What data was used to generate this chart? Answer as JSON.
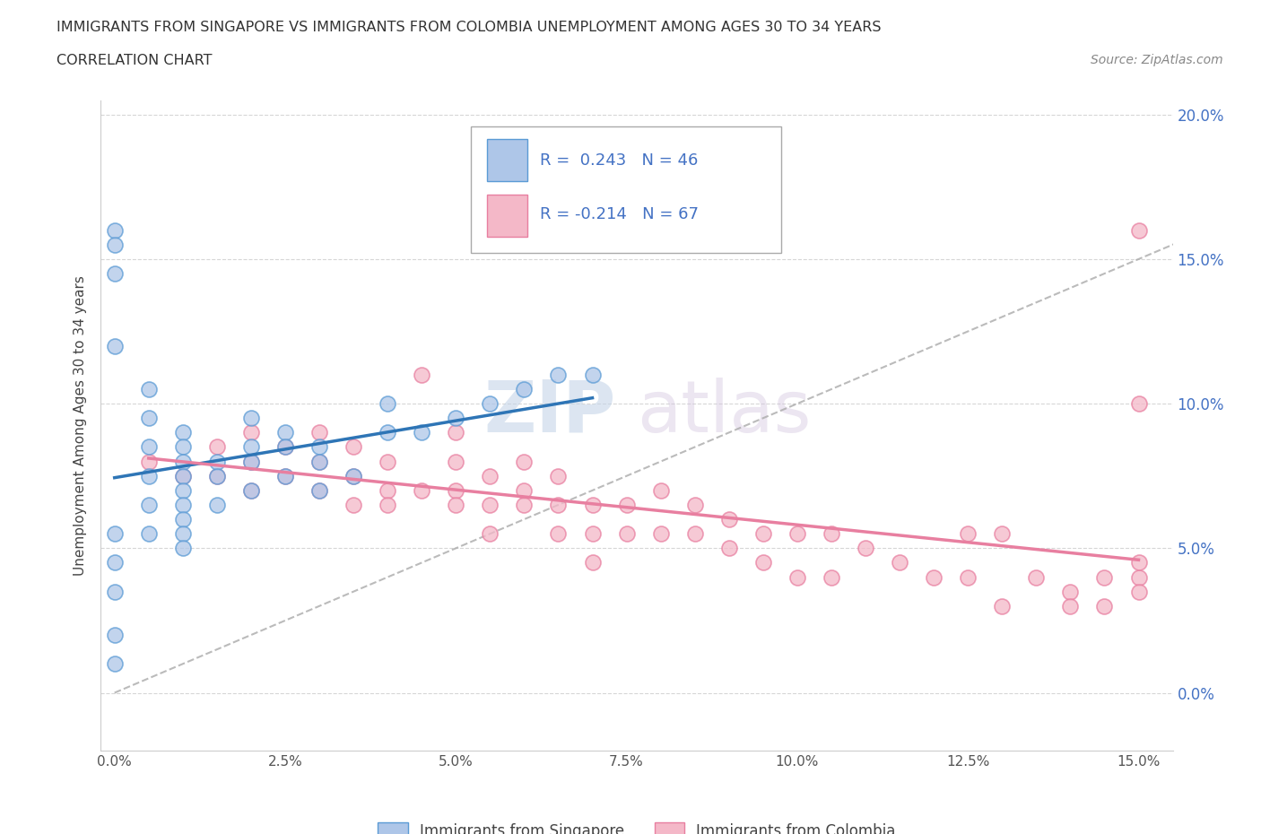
{
  "title_line1": "IMMIGRANTS FROM SINGAPORE VS IMMIGRANTS FROM COLOMBIA UNEMPLOYMENT AMONG AGES 30 TO 34 YEARS",
  "title_line2": "CORRELATION CHART",
  "source_text": "Source: ZipAtlas.com",
  "ylabel": "Unemployment Among Ages 30 to 34 years",
  "xlim": [
    -0.002,
    0.155
  ],
  "ylim": [
    -0.02,
    0.205
  ],
  "xticks": [
    0.0,
    0.025,
    0.05,
    0.075,
    0.1,
    0.125,
    0.15
  ],
  "xtick_labels": [
    "0.0%",
    "2.5%",
    "5.0%",
    "7.5%",
    "10.0%",
    "12.5%",
    "15.0%"
  ],
  "yticks": [
    0.0,
    0.05,
    0.1,
    0.15,
    0.2
  ],
  "ytick_labels": [
    "0.0%",
    "5.0%",
    "10.0%",
    "15.0%",
    "20.0%"
  ],
  "singapore_color": "#aec6e8",
  "singapore_edge": "#5b9bd5",
  "colombia_color": "#f4b8c8",
  "colombia_edge": "#e87fa0",
  "singapore_R": 0.243,
  "singapore_N": 46,
  "colombia_R": -0.214,
  "colombia_N": 67,
  "singapore_trend_color": "#2e75b6",
  "colombia_trend_color": "#e87fa0",
  "diag_line_color": "#aaaaaa",
  "legend_label_singapore": "Immigrants from Singapore",
  "legend_label_colombia": "Immigrants from Colombia",
  "watermark_zip": "ZIP",
  "watermark_atlas": "atlas",
  "background_color": "#ffffff",
  "singapore_x": [
    0.0,
    0.0,
    0.0,
    0.0,
    0.0,
    0.0,
    0.0,
    0.0,
    0.0,
    0.005,
    0.005,
    0.005,
    0.005,
    0.005,
    0.005,
    0.01,
    0.01,
    0.01,
    0.01,
    0.01,
    0.01,
    0.01,
    0.01,
    0.01,
    0.015,
    0.015,
    0.015,
    0.02,
    0.02,
    0.02,
    0.02,
    0.025,
    0.025,
    0.025,
    0.03,
    0.03,
    0.03,
    0.035,
    0.04,
    0.04,
    0.045,
    0.05,
    0.055,
    0.06,
    0.065,
    0.07
  ],
  "singapore_y": [
    0.16,
    0.155,
    0.145,
    0.12,
    0.055,
    0.045,
    0.035,
    0.02,
    0.01,
    0.105,
    0.095,
    0.085,
    0.075,
    0.065,
    0.055,
    0.09,
    0.085,
    0.08,
    0.075,
    0.07,
    0.065,
    0.06,
    0.055,
    0.05,
    0.08,
    0.075,
    0.065,
    0.095,
    0.085,
    0.08,
    0.07,
    0.09,
    0.085,
    0.075,
    0.085,
    0.08,
    0.07,
    0.075,
    0.1,
    0.09,
    0.09,
    0.095,
    0.1,
    0.105,
    0.11,
    0.11
  ],
  "colombia_x": [
    0.005,
    0.01,
    0.015,
    0.015,
    0.02,
    0.02,
    0.02,
    0.025,
    0.025,
    0.03,
    0.03,
    0.03,
    0.035,
    0.035,
    0.035,
    0.04,
    0.04,
    0.04,
    0.045,
    0.045,
    0.05,
    0.05,
    0.05,
    0.05,
    0.055,
    0.055,
    0.055,
    0.06,
    0.06,
    0.06,
    0.065,
    0.065,
    0.065,
    0.07,
    0.07,
    0.07,
    0.075,
    0.075,
    0.08,
    0.08,
    0.085,
    0.085,
    0.09,
    0.09,
    0.095,
    0.095,
    0.1,
    0.1,
    0.105,
    0.105,
    0.11,
    0.115,
    0.12,
    0.125,
    0.125,
    0.13,
    0.13,
    0.135,
    0.14,
    0.14,
    0.145,
    0.145,
    0.15,
    0.15,
    0.15,
    0.15,
    0.15
  ],
  "colombia_y": [
    0.08,
    0.075,
    0.085,
    0.075,
    0.09,
    0.08,
    0.07,
    0.085,
    0.075,
    0.09,
    0.08,
    0.07,
    0.085,
    0.075,
    0.065,
    0.08,
    0.07,
    0.065,
    0.11,
    0.07,
    0.09,
    0.08,
    0.07,
    0.065,
    0.075,
    0.065,
    0.055,
    0.08,
    0.07,
    0.065,
    0.075,
    0.065,
    0.055,
    0.065,
    0.055,
    0.045,
    0.065,
    0.055,
    0.07,
    0.055,
    0.065,
    0.055,
    0.06,
    0.05,
    0.055,
    0.045,
    0.055,
    0.04,
    0.055,
    0.04,
    0.05,
    0.045,
    0.04,
    0.055,
    0.04,
    0.055,
    0.03,
    0.04,
    0.035,
    0.03,
    0.04,
    0.03,
    0.16,
    0.1,
    0.04,
    0.035,
    0.045
  ]
}
